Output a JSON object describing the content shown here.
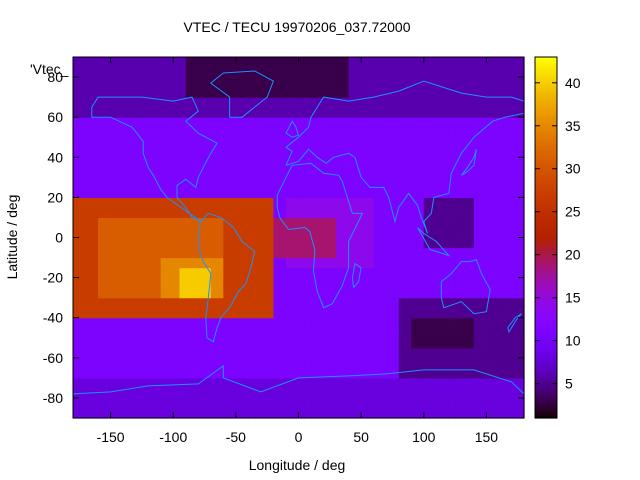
{
  "chart_data": {
    "type": "heatmap",
    "title": "VTEC / TECU 19970206_037.72000",
    "xlabel": "Longitude / deg",
    "ylabel": "Latitude / deg",
    "key_label": "'Vtec_",
    "xlim": [
      -180,
      180
    ],
    "ylim": [
      -90,
      90
    ],
    "x_ticks": [
      -150,
      -100,
      -50,
      0,
      50,
      100,
      150
    ],
    "y_ticks": [
      -80,
      -60,
      -40,
      -20,
      0,
      20,
      40,
      60,
      80
    ],
    "colorbar_range": [
      1,
      43
    ],
    "colorbar_ticks": [
      5,
      10,
      15,
      20,
      25,
      30,
      35,
      40
    ],
    "colormap": "black-purple-red-orange-yellow",
    "grid_step_deg": 5,
    "background_value": 11,
    "value_regions": [
      {
        "lon": [
          -180,
          180
        ],
        "lat": [
          60,
          90
        ],
        "value": 6
      },
      {
        "lon": [
          -90,
          40
        ],
        "lat": [
          70,
          90
        ],
        "value": 3
      },
      {
        "lon": [
          -180,
          180
        ],
        "lat": [
          -90,
          -70
        ],
        "value": 8
      },
      {
        "lon": [
          80,
          180
        ],
        "lat": [
          -70,
          -30
        ],
        "value": 5
      },
      {
        "lon": [
          90,
          140
        ],
        "lat": [
          -55,
          -40
        ],
        "value": 3
      },
      {
        "lon": [
          100,
          140
        ],
        "lat": [
          -5,
          20
        ],
        "value": 5
      },
      {
        "lon": [
          -10,
          60
        ],
        "lat": [
          -15,
          20
        ],
        "value": 14
      },
      {
        "lon": [
          -60,
          -20
        ],
        "lat": [
          -20,
          20
        ],
        "value": 18
      },
      {
        "lon": [
          -20,
          30
        ],
        "lat": [
          -10,
          10
        ],
        "value": 19
      },
      {
        "lon": [
          -180,
          -20
        ],
        "lat": [
          -40,
          20
        ],
        "value": 27
      },
      {
        "lon": [
          -160,
          -60
        ],
        "lat": [
          -30,
          10
        ],
        "value": 31
      },
      {
        "lon": [
          -110,
          -60
        ],
        "lat": [
          -30,
          -10
        ],
        "value": 35
      },
      {
        "lon": [
          -95,
          -70
        ],
        "lat": [
          -30,
          -15
        ],
        "value": 40
      }
    ],
    "colors": {
      "coastline": "#1e90ff",
      "axis": "#000000"
    }
  }
}
